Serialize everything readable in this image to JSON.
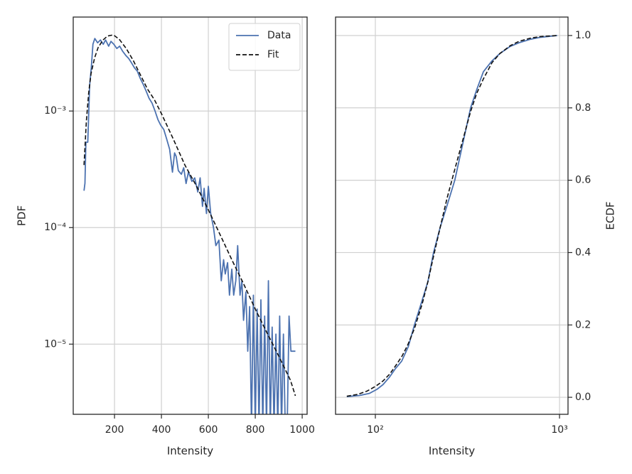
{
  "chart_data": [
    {
      "type": "line",
      "xlabel": "Intensity",
      "ylabel": "PDF",
      "xlim": [
        24,
        1021
      ],
      "ylim": [
        2.5e-06,
        0.0064
      ],
      "ylog": true,
      "yaxis_side": "left",
      "xticks": [
        200,
        400,
        600,
        800,
        1000
      ],
      "yticks": [
        {
          "value": 1e-05,
          "label": "10⁻⁵"
        },
        {
          "value": 0.0001,
          "label": "10⁻⁴"
        },
        {
          "value": 0.001,
          "label": "10⁻³"
        }
      ],
      "grid": true,
      "legend": "upper right",
      "series": [
        {
          "name": "Data",
          "color": "#4c72b0",
          "dash": false,
          "x": [
            70,
            74,
            78,
            86,
            94,
            101,
            108,
            116,
            128,
            140,
            152,
            162,
            175,
            185,
            197,
            210,
            222,
            235,
            248,
            260,
            272,
            285,
            297,
            310,
            322,
            335,
            347,
            360,
            372,
            385,
            397,
            410,
            422,
            435,
            447,
            456,
            463,
            472,
            485,
            495,
            505,
            515,
            530,
            542,
            555,
            565,
            575,
            582,
            592,
            600,
            610,
            622,
            632,
            645,
            655,
            665,
            672,
            682,
            690,
            700,
            708,
            717,
            725,
            735,
            743,
            750,
            760,
            768,
            776,
            784,
            792,
            800,
            808,
            816,
            824,
            832,
            840,
            848,
            856,
            864,
            872,
            880,
            888,
            896,
            904,
            912,
            920,
            928,
            936,
            944,
            952,
            962,
            971
          ],
          "values": [
            0.000207,
            0.00024,
            0.00054,
            0.00054,
            0.00166,
            0.00235,
            0.00374,
            0.00419,
            0.00385,
            0.00407,
            0.00374,
            0.00407,
            0.0036,
            0.00396,
            0.00374,
            0.00344,
            0.0036,
            0.00325,
            0.003,
            0.00283,
            0.0026,
            0.00235,
            0.0022,
            0.0019,
            0.0017,
            0.00148,
            0.00129,
            0.00117,
            0.00101,
            0.000845,
            0.000755,
            0.000694,
            0.000578,
            0.000469,
            0.000299,
            0.000437,
            0.000407,
            0.000308,
            0.000287,
            0.000326,
            0.000239,
            0.000299,
            0.000249,
            0.000267,
            0.000202,
            0.000267,
            0.000152,
            0.000217,
            0.000132,
            0.000226,
            0.000132,
            0.0001,
            7e-05,
            7.8e-05,
            3.5e-05,
            5.3e-05,
            4e-05,
            5e-05,
            2.63e-05,
            4.4e-05,
            2.63e-05,
            3.5e-05,
            7e-05,
            2.63e-05,
            3.5e-05,
            1.6e-05,
            2.8e-05,
            8.7e-06,
            2.1e-05,
            0,
            2.63e-05,
            0,
            2e-05,
            0,
            2.4e-05,
            0,
            1.74e-05,
            0,
            3.5e-05,
            0,
            1.4e-05,
            0,
            1.22e-05,
            0,
            1.74e-05,
            0,
            1.22e-05,
            0,
            0,
            1.74e-05,
            8.7e-06,
            8.7e-06,
            8.7e-06
          ]
        },
        {
          "name": "Fit",
          "color": "#111111",
          "dash": true,
          "x": [
            70,
            80,
            90,
            100,
            115,
            130,
            150,
            170,
            195,
            220,
            250,
            280,
            310,
            340,
            370,
            400,
            450,
            500,
            550,
            600,
            650,
            700,
            750,
            800,
            850,
            900,
            950,
            971
          ],
          "values": [
            0.000344,
            0.00082,
            0.00144,
            0.0021,
            0.00285,
            0.0035,
            0.00405,
            0.0044,
            0.0045,
            0.00413,
            0.00344,
            0.00271,
            0.00205,
            0.00155,
            0.00125,
            0.00095,
            0.000578,
            0.000344,
            0.000226,
            0.000142,
            8.7e-05,
            5.3e-05,
            3.3e-05,
            2e-05,
            1.25e-05,
            7.9e-06,
            4.9e-06,
            3.6e-06
          ]
        }
      ]
    },
    {
      "type": "line",
      "xlabel": "Intensity",
      "ylabel": "ECDF",
      "xlim": [
        60.8,
        1112
      ],
      "ylim": [
        -0.047,
        1.051
      ],
      "xlog": true,
      "yaxis_side": "right",
      "xticks": [
        {
          "value": 100,
          "label": "10²"
        },
        {
          "value": 1000,
          "label": "10³"
        }
      ],
      "yticks": [
        {
          "value": 0,
          "label": "0.0"
        },
        0.2,
        0.4,
        0.6,
        0.8,
        {
          "value": 1,
          "label": "1.0"
        }
      ],
      "grid": true,
      "series": [
        {
          "name": "Data",
          "color": "#4c72b0",
          "dash": false,
          "x": [
            70,
            82,
            93,
            102,
            110,
            119,
            128,
            139,
            151,
            163,
            180,
            193,
            207,
            225,
            245,
            270,
            298,
            329,
            355,
            386,
            430,
            474,
            540,
            603,
            700,
            787,
            971
          ],
          "values": [
            0.002,
            0.005,
            0.011,
            0.022,
            0.035,
            0.055,
            0.078,
            0.1,
            0.14,
            0.2,
            0.27,
            0.32,
            0.4,
            0.47,
            0.53,
            0.6,
            0.7,
            0.8,
            0.85,
            0.9,
            0.93,
            0.95,
            0.97,
            0.98,
            0.99,
            0.995,
            1
          ]
        },
        {
          "name": "Fit",
          "color": "#111111",
          "dash": true,
          "x": [
            70,
            80,
            90,
            100,
            110,
            120,
            130,
            140,
            150,
            163,
            180,
            193,
            207,
            225,
            245,
            270,
            298,
            329,
            355,
            386,
            430,
            474,
            540,
            603,
            700,
            787,
            971
          ],
          "values": [
            0.003,
            0.008,
            0.017,
            0.03,
            0.045,
            0.065,
            0.09,
            0.115,
            0.145,
            0.19,
            0.26,
            0.32,
            0.39,
            0.47,
            0.55,
            0.63,
            0.71,
            0.79,
            0.84,
            0.88,
            0.925,
            0.95,
            0.972,
            0.984,
            0.993,
            0.997,
            1
          ]
        }
      ]
    }
  ]
}
